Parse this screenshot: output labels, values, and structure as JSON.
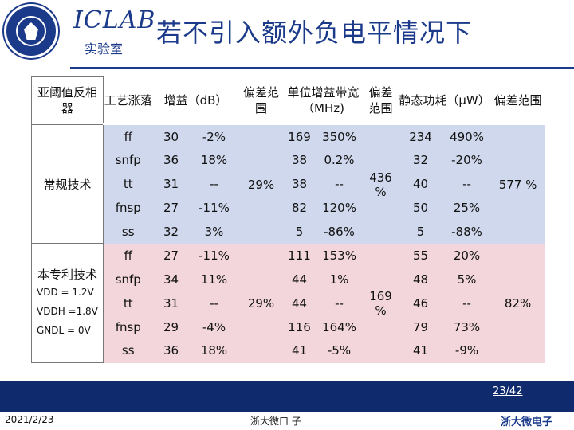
{
  "header": {
    "brand_latin": "ICLAB",
    "brand_cn": "实验室",
    "title": "若不引入额外负电平情况下",
    "logo_name": "zhejiang-university-seal"
  },
  "table": {
    "headers": [
      "亚阈值反相器",
      "工艺涨落",
      "增益（dB）",
      "偏差范围",
      "单位增益带宽（MHz)",
      "偏差范围",
      "静态功耗（μW）",
      "偏差范围"
    ],
    "groupA": {
      "label": "常规技术",
      "gain_dev": "29%",
      "bw_dev": "436 %",
      "pw_dev": "577 %",
      "rows": [
        {
          "corner": "ff",
          "gain": "30",
          "gain_pct": "-2%",
          "bw": "169",
          "bw_pct": "350%",
          "pw": "234",
          "pw_pct": "490%"
        },
        {
          "corner": "snfp",
          "gain": "36",
          "gain_pct": "18%",
          "bw": "38",
          "bw_pct": "0.2%",
          "pw": "32",
          "pw_pct": "-20%"
        },
        {
          "corner": "tt",
          "gain": "31",
          "gain_pct": "--",
          "bw": "38",
          "bw_pct": "--",
          "pw": "40",
          "pw_pct": "--"
        },
        {
          "corner": "fnsp",
          "gain": "27",
          "gain_pct": "-11%",
          "bw": "82",
          "bw_pct": "120%",
          "pw": "50",
          "pw_pct": "25%"
        },
        {
          "corner": "ss",
          "gain": "32",
          "gain_pct": "3%",
          "bw": "5",
          "bw_pct": "-86%",
          "pw": "5",
          "pw_pct": "-88%"
        }
      ]
    },
    "groupB": {
      "label": "本专利技术",
      "vdd": "VDD = 1.2V",
      "vddh": "VDDH =1.8V",
      "gndl": "GNDL = 0V",
      "gain_dev": "29%",
      "bw_dev": "169 %",
      "pw_dev": "82%",
      "rows": [
        {
          "corner": "ff",
          "gain": "27",
          "gain_pct": "-11%",
          "bw": "111",
          "bw_pct": "153%",
          "pw": "55",
          "pw_pct": "20%"
        },
        {
          "corner": "snfp",
          "gain": "34",
          "gain_pct": "11%",
          "bw": "44",
          "bw_pct": "1%",
          "pw": "48",
          "pw_pct": "5%"
        },
        {
          "corner": "tt",
          "gain": "31",
          "gain_pct": "--",
          "bw": "44",
          "bw_pct": "--",
          "pw": "46",
          "pw_pct": "--"
        },
        {
          "corner": "fnsp",
          "gain": "29",
          "gain_pct": "-4%",
          "bw": "116",
          "bw_pct": "164%",
          "pw": "79",
          "pw_pct": "73%"
        },
        {
          "corner": "ss",
          "gain": "36",
          "gain_pct": "18%",
          "bw": "41",
          "bw_pct": "-5%",
          "pw": "41",
          "pw_pct": "-9%"
        }
      ]
    }
  },
  "footer": {
    "page": "23/42",
    "date": "2021/2/23",
    "center": "浙大微口 子",
    "brand": "浙大微电子"
  },
  "colors": {
    "navy": "#1b3a8a",
    "blue_cell": "#cfd8ec",
    "pink_cell": "#f2d6dc",
    "footer_bar": "#0f2a6d"
  }
}
